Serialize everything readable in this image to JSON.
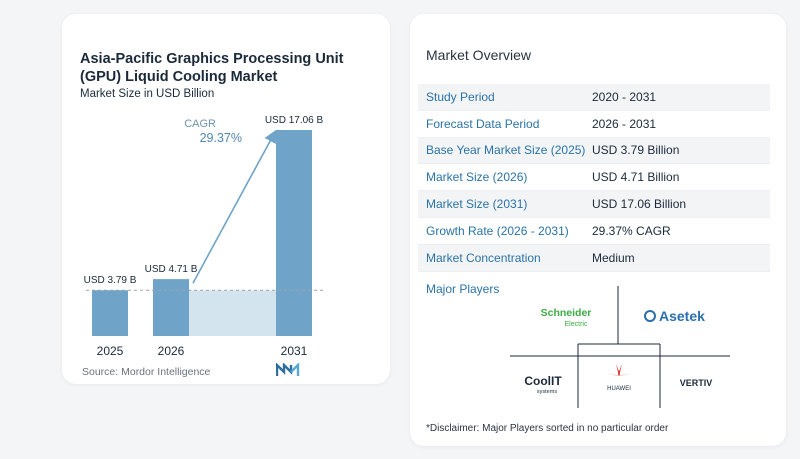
{
  "chart_data": {
    "type": "bar",
    "title": "Asia-Pacific Graphics Processing Unit (GPU) Liquid Cooling Market",
    "subtitle": "Market Size in USD Billion",
    "categories": [
      "2025",
      "2026",
      "2031"
    ],
    "values": [
      3.79,
      4.71,
      17.06
    ],
    "data_labels": [
      "USD 3.79 B",
      "USD 4.71 B",
      "USD 17.06 B"
    ],
    "cagr_label": "CAGR",
    "cagr_value": "29.37%",
    "bar_color": "#6fa3c8",
    "ylim": [
      0,
      17.06
    ]
  },
  "source": "Source:  Mordor Intelligence",
  "overview": {
    "title": "Market Overview",
    "rows": [
      {
        "label": "Study Period",
        "value": "2020 - 2031"
      },
      {
        "label": "Forecast Data Period",
        "value": "2026 - 2031"
      },
      {
        "label": "Base Year Market Size (2025)",
        "value": "USD 3.79 Billion"
      },
      {
        "label": "Market Size (2026)",
        "value": "USD 4.71 Billion"
      },
      {
        "label": "Market Size (2031)",
        "value": "USD 17.06 Billion"
      },
      {
        "label": "Growth Rate (2026 - 2031)",
        "value": "29.37% CAGR"
      },
      {
        "label": "Market Concentration",
        "value": "Medium"
      }
    ],
    "players_title": "Major Players",
    "players": {
      "schneider": "Schneider",
      "schneider_sub": "Electric",
      "asetek": "Asetek",
      "coolit": "CoolIT",
      "coolit_sub": "systems",
      "huawei": "HUAWEI",
      "vertiv": "VERTIV"
    },
    "disclaimer": "*Disclaimer: Major Players sorted in no particular order"
  }
}
